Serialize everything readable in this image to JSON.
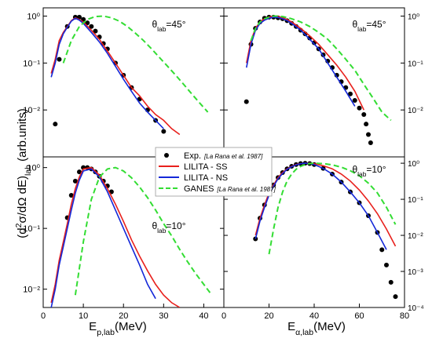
{
  "chart_data": {
    "type": "line",
    "ylabel": "(d²σ/dΩ dE)lab (arb.units)",
    "y_axis_title": {
      "pre": "(d",
      "sup": "2",
      "mid": "σ/dΩ dE)",
      "sub": "lab",
      "post": " (arb.units)"
    },
    "panels": [
      {
        "id": "proton-45",
        "theta_label": {
          "prefix": "θ",
          "sub": "lab",
          "value": "=45°"
        },
        "xlim": [
          0,
          45
        ],
        "ylim": [
          0.001,
          1.5
        ],
        "yscale": "log",
        "xticks": [],
        "yticks": [
          {
            "v": 1,
            "t": "10⁰"
          },
          {
            "v": 0.1,
            "t": "10⁻¹"
          },
          {
            "v": 0.01,
            "t": "10⁻²"
          }
        ],
        "series": [
          {
            "name": "Exp. [La Rana et al. 1987]",
            "style": "points",
            "x": [
              3,
              4,
              6,
              8,
              9,
              10,
              11,
              12,
              13,
              14,
              15,
              16,
              18,
              20,
              22,
              24,
              26,
              28,
              30
            ],
            "y": [
              0.005,
              0.12,
              0.6,
              0.95,
              0.95,
              0.85,
              0.72,
              0.6,
              0.48,
              0.36,
              0.26,
              0.2,
              0.1,
              0.055,
              0.03,
              0.017,
              0.01,
              0.006,
              0.0035
            ]
          },
          {
            "name": "LILITA - SS",
            "style": "line",
            "x": [
              2,
              3,
              4,
              5,
              6,
              7,
              8,
              9,
              10,
              12,
              14,
              16,
              18,
              20,
              22,
              24,
              26,
              28,
              30,
              32,
              34
            ],
            "y": [
              0.06,
              0.12,
              0.3,
              0.45,
              0.6,
              0.8,
              0.92,
              0.85,
              0.75,
              0.5,
              0.32,
              0.18,
              0.1,
              0.055,
              0.03,
              0.02,
              0.012,
              0.008,
              0.006,
              0.004,
              0.003
            ]
          },
          {
            "name": "LILITA - NS",
            "style": "line",
            "x": [
              2,
              3,
              4,
              5,
              6,
              7,
              8,
              9,
              10,
              12,
              14,
              16,
              18,
              20,
              22,
              24,
              26,
              28,
              30
            ],
            "y": [
              0.05,
              0.1,
              0.25,
              0.42,
              0.58,
              0.78,
              0.9,
              0.82,
              0.7,
              0.45,
              0.28,
              0.16,
              0.085,
              0.045,
              0.025,
              0.014,
              0.009,
              0.006,
              0.004
            ]
          },
          {
            "name": "GANES [La Rana et al. 1987]",
            "style": "dashed",
            "x": [
              5,
              7,
              9,
              11,
              13,
              15,
              17,
              19,
              21,
              23,
              25,
              27,
              29,
              31,
              33,
              35,
              37,
              39,
              41
            ],
            "y": [
              0.1,
              0.3,
              0.6,
              0.85,
              0.98,
              1.0,
              0.92,
              0.78,
              0.6,
              0.43,
              0.3,
              0.2,
              0.13,
              0.085,
              0.055,
              0.035,
              0.022,
              0.014,
              0.009
            ]
          }
        ]
      },
      {
        "id": "alpha-45",
        "theta_label": {
          "prefix": "θ",
          "sub": "lab",
          "value": "=45°"
        },
        "xlim": [
          0,
          80
        ],
        "ylim": [
          0.001,
          1.5
        ],
        "yscale": "log",
        "xticks": [],
        "yticks": [
          {
            "v": 1,
            "t": "10⁰"
          },
          {
            "v": 0.1,
            "t": "10⁻¹"
          },
          {
            "v": 0.01,
            "t": "10⁻²"
          }
        ],
        "series": [
          {
            "name": "Exp. [La Rana et al. 1987]",
            "style": "points",
            "x": [
              10,
              12,
              14,
              16,
              18,
              20,
              22,
              24,
              26,
              28,
              30,
              32,
              34,
              36,
              38,
              40,
              42,
              44,
              46,
              48,
              50,
              52,
              54,
              56,
              58,
              60,
              62,
              63,
              64,
              65
            ],
            "y": [
              0.015,
              0.25,
              0.55,
              0.75,
              0.9,
              0.95,
              0.95,
              0.92,
              0.88,
              0.8,
              0.7,
              0.6,
              0.5,
              0.42,
              0.34,
              0.27,
              0.2,
              0.15,
              0.11,
              0.08,
              0.055,
              0.04,
              0.03,
              0.022,
              0.016,
              0.011,
              0.008,
              0.005,
              0.003,
              0.002
            ]
          },
          {
            "name": "LILITA - SS",
            "style": "line",
            "x": [
              10,
              12,
              14,
              16,
              18,
              20,
              22,
              24,
              26,
              28,
              30,
              34,
              38,
              42,
              46,
              50,
              54,
              58,
              62
            ],
            "y": [
              0.1,
              0.3,
              0.55,
              0.75,
              0.88,
              0.95,
              1.0,
              0.98,
              0.92,
              0.85,
              0.75,
              0.55,
              0.38,
              0.25,
              0.15,
              0.09,
              0.05,
              0.025,
              0.01
            ]
          },
          {
            "name": "LILITA - NS",
            "style": "line",
            "x": [
              10,
              12,
              14,
              16,
              18,
              20,
              22,
              24,
              26,
              28,
              30,
              34,
              38,
              42,
              46,
              50,
              54,
              58
            ],
            "y": [
              0.08,
              0.25,
              0.5,
              0.7,
              0.82,
              0.9,
              0.95,
              0.93,
              0.88,
              0.8,
              0.7,
              0.5,
              0.32,
              0.2,
              0.1,
              0.05,
              0.025,
              0.012
            ]
          },
          {
            "name": "GANES [La Rana et al. 1987]",
            "style": "dashed",
            "x": [
              12,
              14,
              16,
              18,
              20,
              22,
              24,
              26,
              28,
              30,
              34,
              38,
              42,
              46,
              50,
              54,
              58,
              62,
              66,
              70,
              74
            ],
            "y": [
              0.3,
              0.55,
              0.75,
              0.88,
              0.95,
              1.0,
              1.0,
              0.98,
              0.93,
              0.88,
              0.75,
              0.6,
              0.45,
              0.32,
              0.2,
              0.12,
              0.07,
              0.035,
              0.018,
              0.009,
              0.006
            ]
          }
        ]
      },
      {
        "id": "proton-10",
        "theta_label": {
          "prefix": "θ",
          "sub": "lab",
          "value": "=10°"
        },
        "xlim": [
          0,
          45
        ],
        "ylim": [
          0.005,
          1.5
        ],
        "yscale": "log",
        "xticks": [
          {
            "v": 0,
            "t": "0"
          },
          {
            "v": 10,
            "t": "10"
          },
          {
            "v": 20,
            "t": "20"
          },
          {
            "v": 30,
            "t": "30"
          },
          {
            "v": 40,
            "t": "40"
          }
        ],
        "yticks": [
          {
            "v": 1,
            "t": "10⁰"
          },
          {
            "v": 0.1,
            "t": "10⁻¹"
          },
          {
            "v": 0.01,
            "t": "10⁻²"
          }
        ],
        "series": [
          {
            "name": "Exp. [La Rana et al. 1987]",
            "style": "points",
            "x": [
              6,
              7,
              8,
              9,
              10,
              11,
              12,
              13,
              14,
              15,
              16,
              17
            ],
            "y": [
              0.15,
              0.35,
              0.6,
              0.85,
              1.0,
              1.0,
              0.95,
              0.85,
              0.72,
              0.6,
              0.5,
              0.4
            ]
          },
          {
            "name": "LILITA - SS",
            "style": "line",
            "x": [
              2,
              3,
              4,
              5,
              6,
              7,
              8,
              9,
              10,
              12,
              14,
              16,
              18,
              20,
              22,
              24,
              26,
              28,
              30,
              32,
              34
            ],
            "y": [
              0.006,
              0.012,
              0.03,
              0.06,
              0.12,
              0.25,
              0.45,
              0.7,
              0.95,
              1.0,
              0.75,
              0.45,
              0.25,
              0.13,
              0.065,
              0.035,
              0.02,
              0.012,
              0.008,
              0.006,
              0.005
            ]
          },
          {
            "name": "LILITA - NS",
            "style": "line",
            "x": [
              2,
              3,
              4,
              5,
              6,
              7,
              8,
              9,
              10,
              12,
              14,
              16,
              18,
              20,
              22,
              24,
              26,
              28
            ],
            "y": [
              0.005,
              0.01,
              0.025,
              0.05,
              0.1,
              0.2,
              0.38,
              0.62,
              0.88,
              0.95,
              0.7,
              0.4,
              0.2,
              0.1,
              0.05,
              0.025,
              0.012,
              0.007
            ]
          },
          {
            "name": "GANES [La Rana et al. 1987]",
            "style": "dashed",
            "x": [
              8,
              10,
              12,
              14,
              16,
              18,
              20,
              22,
              24,
              26,
              28,
              30,
              32,
              34,
              36,
              38,
              40,
              42
            ],
            "y": [
              0.008,
              0.06,
              0.3,
              0.7,
              0.95,
              1.0,
              0.88,
              0.68,
              0.48,
              0.32,
              0.2,
              0.12,
              0.075,
              0.045,
              0.028,
              0.018,
              0.012,
              0.008
            ]
          }
        ]
      },
      {
        "id": "alpha-10",
        "theta_label": {
          "prefix": "θ",
          "sub": "lab",
          "value": "=10°"
        },
        "xlim": [
          0,
          80
        ],
        "ylim": [
          0.0001,
          1.5
        ],
        "yscale": "log",
        "xticks": [
          {
            "v": 0,
            "t": "0"
          },
          {
            "v": 20,
            "t": "20"
          },
          {
            "v": 40,
            "t": "40"
          },
          {
            "v": 60,
            "t": "60"
          },
          {
            "v": 80,
            "t": "80"
          }
        ],
        "yticks": [
          {
            "v": 1,
            "t": "10⁰"
          },
          {
            "v": 0.1,
            "t": "10⁻¹"
          },
          {
            "v": 0.01,
            "t": "10⁻²"
          },
          {
            "v": 0.001,
            "t": "10⁻³"
          },
          {
            "v": 0.0001,
            "t": "10⁻⁴"
          }
        ],
        "series": [
          {
            "name": "Exp. [La Rana et al. 1987]",
            "style": "points",
            "x": [
              14,
              16,
              18,
              20,
              22,
              24,
              26,
              28,
              30,
              32,
              34,
              36,
              38,
              40,
              44,
              48,
              52,
              56,
              60,
              64,
              68,
              70,
              72,
              74,
              76
            ],
            "y": [
              0.008,
              0.03,
              0.07,
              0.15,
              0.25,
              0.4,
              0.55,
              0.7,
              0.82,
              0.92,
              0.98,
              1.0,
              0.98,
              0.92,
              0.72,
              0.5,
              0.3,
              0.16,
              0.08,
              0.035,
              0.012,
              0.004,
              0.0015,
              0.0005,
              0.0002
            ]
          },
          {
            "name": "LILITA - SS",
            "style": "line",
            "x": [
              14,
              16,
              18,
              20,
              22,
              24,
              26,
              28,
              30,
              32,
              34,
              36,
              38,
              40,
              44,
              48,
              52,
              56,
              60,
              64,
              68,
              72,
              76
            ],
            "y": [
              0.01,
              0.03,
              0.07,
              0.15,
              0.25,
              0.4,
              0.55,
              0.7,
              0.82,
              0.92,
              0.98,
              1.0,
              1.0,
              0.97,
              0.85,
              0.7,
              0.5,
              0.32,
              0.18,
              0.09,
              0.04,
              0.015,
              0.005
            ]
          },
          {
            "name": "LILITA - NS",
            "style": "line",
            "x": [
              14,
              16,
              18,
              20,
              22,
              24,
              26,
              28,
              30,
              32,
              34,
              36,
              38,
              40,
              44,
              48,
              52,
              56,
              60,
              64,
              68,
              72
            ],
            "y": [
              0.008,
              0.025,
              0.06,
              0.13,
              0.23,
              0.37,
              0.52,
              0.68,
              0.8,
              0.9,
              0.97,
              1.0,
              0.98,
              0.92,
              0.72,
              0.5,
              0.3,
              0.16,
              0.08,
              0.035,
              0.012,
              0.004
            ]
          },
          {
            "name": "GANES [La Rana et al. 1987]",
            "style": "dashed",
            "x": [
              20,
              22,
              24,
              26,
              28,
              30,
              32,
              34,
              36,
              38,
              40,
              44,
              48,
              52,
              56,
              60,
              64,
              68,
              72,
              76
            ],
            "y": [
              0.003,
              0.015,
              0.06,
              0.16,
              0.32,
              0.5,
              0.68,
              0.82,
              0.92,
              0.98,
              1.0,
              0.98,
              0.9,
              0.78,
              0.62,
              0.45,
              0.28,
              0.15,
              0.06,
              0.02
            ]
          }
        ]
      }
    ],
    "legend": [
      {
        "name": "Exp.",
        "ref": "[La Rana et al. 1987]",
        "style": "points"
      },
      {
        "name": "LILITA - SS",
        "ref": "",
        "style": "line"
      },
      {
        "name": "LILITA - NS",
        "ref": "",
        "style": "line"
      },
      {
        "name": "GANES",
        "ref": "[La Rana et al. 1987]",
        "style": "dashed"
      }
    ],
    "xlabel_left": {
      "pre": "E",
      "sub": "p,lab",
      "post": "(MeV)"
    },
    "xlabel_right": {
      "pre": "E",
      "sub": "α,lab",
      "post": "(MeV)"
    },
    "colors": {
      "exp": "#000000",
      "ss": "#e8201c",
      "ns": "#1428d8",
      "ganes": "#33dd33"
    }
  }
}
